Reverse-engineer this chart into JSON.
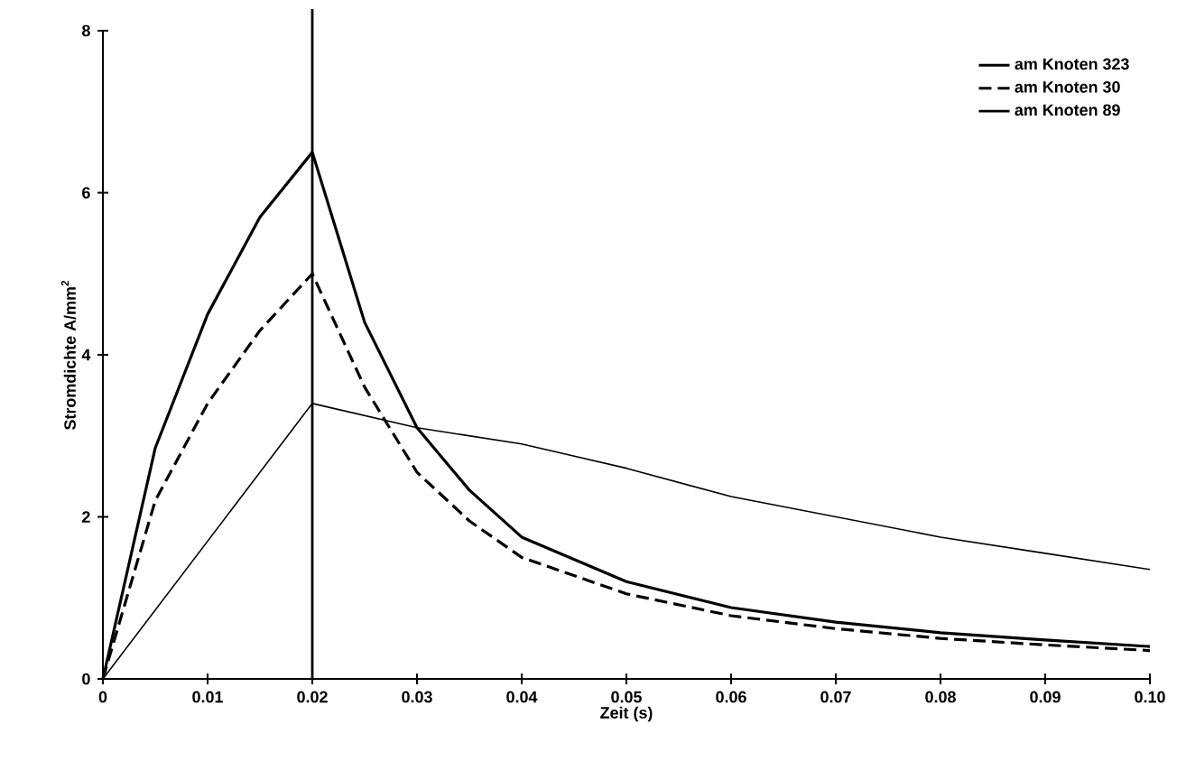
{
  "chart_data": {
    "type": "line",
    "xlabel": "Zeit (s)",
    "ylabel": "Stromdichte A/mm$^{2}$",
    "xlim": [
      0,
      0.1
    ],
    "ylim": [
      0,
      8
    ],
    "xticks": [
      0,
      0.01,
      0.02,
      0.03,
      0.04,
      0.05,
      0.06,
      0.07,
      0.08,
      0.09,
      {
        "value": 0.1,
        "label": "0.10"
      }
    ],
    "yticks": [
      0,
      2,
      4,
      6,
      8
    ],
    "x": [
      0,
      0.005,
      0.01,
      0.015,
      0.02,
      0.025,
      0.03,
      0.035,
      0.04,
      0.05,
      0.06,
      0.07,
      0.08,
      0.09,
      0.1
    ],
    "series": [
      {
        "name": "am Knoten 323",
        "color": "#000000",
        "line_style": "solid",
        "values": [
          0,
          2.85,
          4.5,
          5.7,
          6.5,
          4.4,
          3.1,
          2.33,
          1.75,
          1.2,
          0.88,
          0.7,
          0.57,
          0.48,
          0.4
        ]
      },
      {
        "name": "am Knoten 30",
        "color": "#000000",
        "line_style": "dashed",
        "values": [
          0,
          2.2,
          3.4,
          4.3,
          5.0,
          3.6,
          2.55,
          1.95,
          1.5,
          1.05,
          0.78,
          0.62,
          0.5,
          0.42,
          0.35
        ]
      },
      {
        "name": "am Knoten 89",
        "color": "#000000",
        "line_style": "solid",
        "x": [
          0,
          0.02,
          0.03,
          0.04,
          0.05,
          0.06,
          0.07,
          0.08,
          0.09,
          0.1
        ],
        "values": [
          0,
          3.4,
          3.1,
          2.9,
          2.6,
          2.25,
          2.0,
          1.75,
          1.55,
          1.35
        ]
      }
    ],
    "ref_lines": [
      {
        "axis": "x",
        "value": 0.02,
        "color": "#000000"
      }
    ],
    "grid": false,
    "legend": "top right",
    "marker": "none"
  }
}
